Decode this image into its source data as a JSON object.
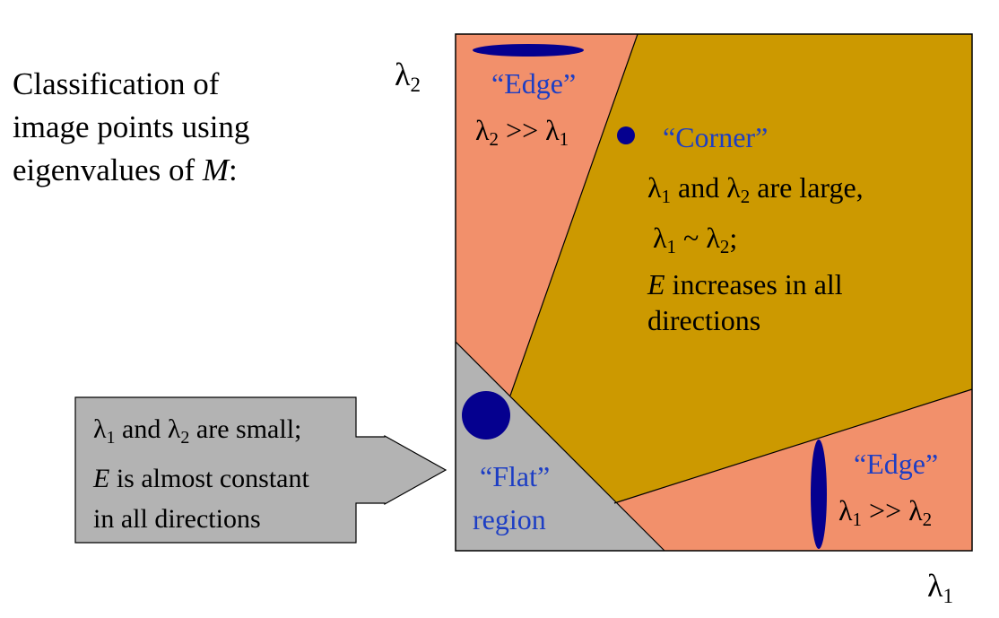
{
  "title": {
    "line1": "Classification of",
    "line2": "image points using",
    "line3_prefix": "eigenvalues of ",
    "line3_symbol": "M",
    "line3_suffix": ":"
  },
  "axes": {
    "y_symbol": "λ",
    "y_sub": "2",
    "x_symbol": "λ",
    "x_sub": "1"
  },
  "regions": {
    "edge_top": {
      "name": "“Edge”",
      "cond_a": "λ",
      "cond_a_sub": "2",
      "cond_op": " >> ",
      "cond_b": "λ",
      "cond_b_sub": "1"
    },
    "corner": {
      "name": "“Corner”",
      "l1": "λ",
      "l1_sub": "1",
      "l1_rest": " and ",
      "l1_b": "λ",
      "l1_b_sub": "2",
      "l1_end": " are large,",
      "l2": "λ",
      "l2_sub": "1",
      "l2_op": " ~ ",
      "l2_b": "λ",
      "l2_b_sub": "2",
      "l2_end": ";",
      "l3_symbol": "E",
      "l3_rest": " increases in all",
      "l4": "directions"
    },
    "edge_right": {
      "name": "“Edge”",
      "cond_a": "λ",
      "cond_a_sub": "1",
      "cond_op": " >> ",
      "cond_b": "λ",
      "cond_b_sub": "2"
    },
    "flat": {
      "line1": "“Flat”",
      "line2": "region"
    }
  },
  "callout": {
    "l1_a": "λ",
    "l1_a_sub": "1",
    "l1_mid": " and ",
    "l1_b": "λ",
    "l1_b_sub": "2",
    "l1_end": " are small;",
    "l2_symbol": "E",
    "l2_rest": " is almost constant",
    "l3": "in all directions"
  },
  "colors": {
    "edge_region": "#f2906b",
    "corner_region": "#cc9900",
    "flat_region": "#b3b3b3",
    "callout_fill": "#b3b3b3",
    "ellipse_fill": "#05008f",
    "label_blue": "#1d3ec4"
  }
}
